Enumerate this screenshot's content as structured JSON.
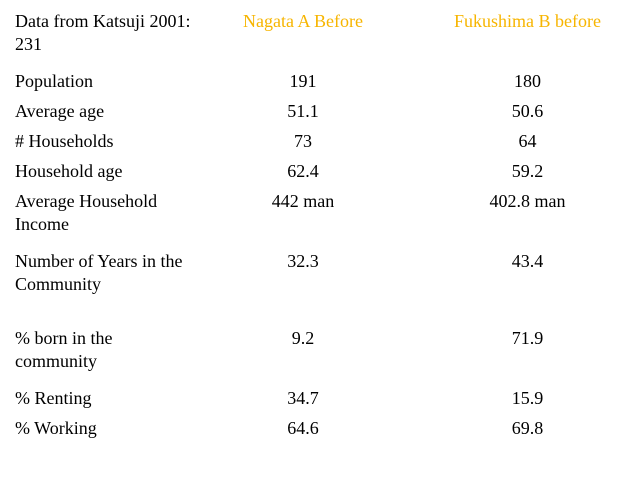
{
  "header": {
    "source_label": "Data from Katsuji 2001: 231",
    "col1": "Nagata A Before",
    "col2": "Fukushima B before"
  },
  "rows": [
    {
      "label": "Population",
      "a": "191",
      "b": "180"
    },
    {
      "label": "Average age",
      "a": "51.1",
      "b": "50.6"
    },
    {
      "label": "# Households",
      "a": "73",
      "b": "64"
    },
    {
      "label": "Household age",
      "a": "62.4",
      "b": "59.2"
    },
    {
      "label": "Average Household Income",
      "a": "442 man",
      "b": "402.8 man"
    },
    {
      "label": "Number of Years in the Community",
      "a": "32.3",
      "b": "43.4"
    },
    {
      "label": "% born in the community",
      "a": "9.2",
      "b": "71.9"
    },
    {
      "label": "% Renting",
      "a": "34.7",
      "b": "15.9"
    },
    {
      "label": "% Working",
      "a": "64.6",
      "b": "69.8"
    }
  ],
  "colors": {
    "header_accent": "#f7b500",
    "text": "#000000",
    "background": "#ffffff"
  }
}
